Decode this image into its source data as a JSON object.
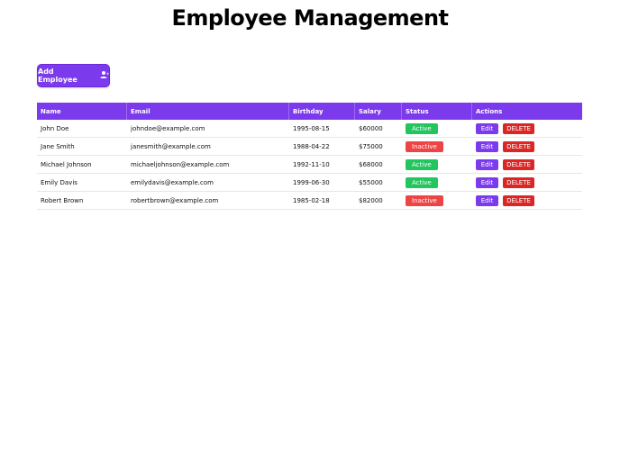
{
  "page": {
    "title": "Employee Management"
  },
  "toolbar": {
    "add_label": "Add Employee",
    "add_icon": "user-plus-icon"
  },
  "table": {
    "headers": [
      "Name",
      "Email",
      "Birthday",
      "Salary",
      "Status",
      "Actions"
    ],
    "edit_label": "Edit",
    "delete_label": "DELETE",
    "rows": [
      {
        "name": "John Doe",
        "email": "johndoe@example.com",
        "birthday": "1995-08-15",
        "salary": "$60000",
        "status": "Active"
      },
      {
        "name": "Jane Smith",
        "email": "janesmith@example.com",
        "birthday": "1988-04-22",
        "salary": "$75000",
        "status": "Inactive"
      },
      {
        "name": "Michael Johnson",
        "email": "michaeljohnson@example.com",
        "birthday": "1992-11-10",
        "salary": "$68000",
        "status": "Active"
      },
      {
        "name": "Emily Davis",
        "email": "emilydavis@example.com",
        "birthday": "1999-06-30",
        "salary": "$55000",
        "status": "Active"
      },
      {
        "name": "Robert Brown",
        "email": "robertbrown@example.com",
        "birthday": "1985-02-18",
        "salary": "$82000",
        "status": "Inactive"
      }
    ]
  },
  "colors": {
    "accent": "#7c3aed",
    "active": "#22c55e",
    "inactive": "#ef4444",
    "delete": "#dc2626"
  }
}
